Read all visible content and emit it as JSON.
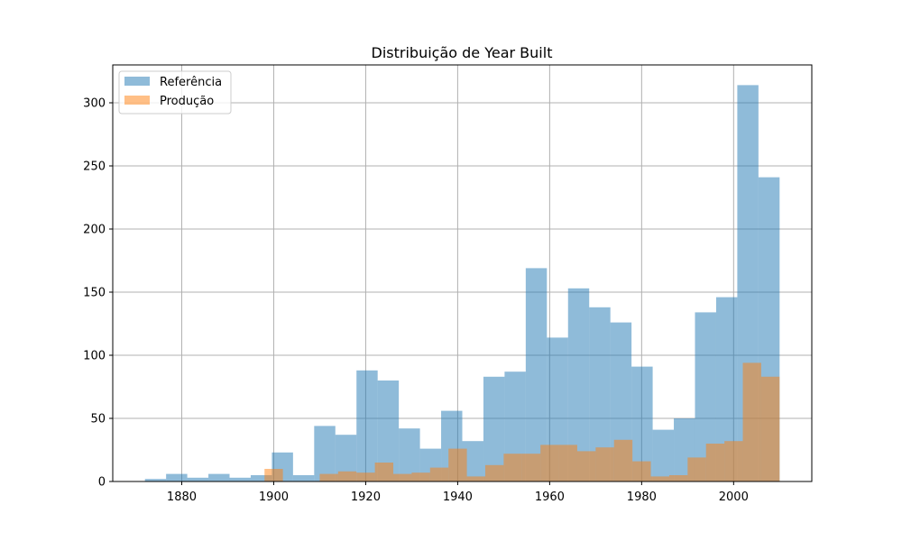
{
  "chart_data": {
    "type": "bar",
    "title": "Distribuição de Year Built",
    "xlabel": "",
    "ylabel": "",
    "xlim": [
      1865,
      2017
    ],
    "ylim": [
      0,
      330
    ],
    "grid": true,
    "legend_placement": "top-left",
    "x_ticks": [
      "1880",
      "1900",
      "1920",
      "1940",
      "1960",
      "1980",
      "2000"
    ],
    "y_ticks": [
      "0",
      "50",
      "100",
      "150",
      "200",
      "250",
      "300"
    ],
    "series": [
      {
        "name": "Referência",
        "color": "#1f77b4",
        "opacity": 0.5,
        "bins": [
          {
            "x0": 1872.0,
            "x1": 1876.6,
            "y": 2
          },
          {
            "x0": 1876.6,
            "x1": 1881.2,
            "y": 6
          },
          {
            "x0": 1881.2,
            "x1": 1885.8,
            "y": 3
          },
          {
            "x0": 1885.8,
            "x1": 1890.4,
            "y": 6
          },
          {
            "x0": 1890.4,
            "x1": 1895.0,
            "y": 3
          },
          {
            "x0": 1895.0,
            "x1": 1899.6,
            "y": 5
          },
          {
            "x0": 1899.6,
            "x1": 1904.2,
            "y": 23
          },
          {
            "x0": 1904.2,
            "x1": 1908.8,
            "y": 5
          },
          {
            "x0": 1908.8,
            "x1": 1913.4,
            "y": 44
          },
          {
            "x0": 1913.4,
            "x1": 1918.0,
            "y": 37
          },
          {
            "x0": 1918.0,
            "x1": 1922.6,
            "y": 88
          },
          {
            "x0": 1922.6,
            "x1": 1927.2,
            "y": 80
          },
          {
            "x0": 1927.2,
            "x1": 1931.8,
            "y": 42
          },
          {
            "x0": 1931.8,
            "x1": 1936.4,
            "y": 26
          },
          {
            "x0": 1936.4,
            "x1": 1941.0,
            "y": 56
          },
          {
            "x0": 1941.0,
            "x1": 1945.6,
            "y": 32
          },
          {
            "x0": 1945.6,
            "x1": 1950.2,
            "y": 83
          },
          {
            "x0": 1950.2,
            "x1": 1954.8,
            "y": 87
          },
          {
            "x0": 1954.8,
            "x1": 1959.4,
            "y": 169
          },
          {
            "x0": 1959.4,
            "x1": 1964.0,
            "y": 114
          },
          {
            "x0": 1964.0,
            "x1": 1968.6,
            "y": 153
          },
          {
            "x0": 1968.6,
            "x1": 1973.2,
            "y": 138
          },
          {
            "x0": 1973.2,
            "x1": 1977.8,
            "y": 126
          },
          {
            "x0": 1977.8,
            "x1": 1982.4,
            "y": 91
          },
          {
            "x0": 1982.4,
            "x1": 1987.0,
            "y": 41
          },
          {
            "x0": 1987.0,
            "x1": 1991.6,
            "y": 50
          },
          {
            "x0": 1991.6,
            "x1": 1996.2,
            "y": 134
          },
          {
            "x0": 1996.2,
            "x1": 2000.8,
            "y": 146
          },
          {
            "x0": 2000.8,
            "x1": 2005.4,
            "y": 314
          },
          {
            "x0": 2005.4,
            "x1": 2010.0,
            "y": 241
          }
        ]
      },
      {
        "name": "Produção",
        "color": "#ff7f0e",
        "opacity": 0.5,
        "bins": [
          {
            "x0": 1898.0,
            "x1": 1900.0,
            "y": 10
          },
          {
            "x0": 1900.0,
            "x1": 1902.0,
            "y": 10
          },
          {
            "x0": 1910.0,
            "x1": 1914.0,
            "y": 6
          },
          {
            "x0": 1914.0,
            "x1": 1918.0,
            "y": 8
          },
          {
            "x0": 1918.0,
            "x1": 1922.0,
            "y": 7
          },
          {
            "x0": 1922.0,
            "x1": 1926.0,
            "y": 15
          },
          {
            "x0": 1926.0,
            "x1": 1930.0,
            "y": 6
          },
          {
            "x0": 1930.0,
            "x1": 1934.0,
            "y": 7
          },
          {
            "x0": 1934.0,
            "x1": 1938.0,
            "y": 11
          },
          {
            "x0": 1938.0,
            "x1": 1942.0,
            "y": 26
          },
          {
            "x0": 1942.0,
            "x1": 1946.0,
            "y": 4
          },
          {
            "x0": 1946.0,
            "x1": 1950.0,
            "y": 13
          },
          {
            "x0": 1950.0,
            "x1": 1954.0,
            "y": 22
          },
          {
            "x0": 1954.0,
            "x1": 1958.0,
            "y": 22
          },
          {
            "x0": 1958.0,
            "x1": 1962.0,
            "y": 29
          },
          {
            "x0": 1962.0,
            "x1": 1966.0,
            "y": 29
          },
          {
            "x0": 1966.0,
            "x1": 1970.0,
            "y": 24
          },
          {
            "x0": 1970.0,
            "x1": 1974.0,
            "y": 27
          },
          {
            "x0": 1974.0,
            "x1": 1978.0,
            "y": 33
          },
          {
            "x0": 1978.0,
            "x1": 1982.0,
            "y": 16
          },
          {
            "x0": 1982.0,
            "x1": 1986.0,
            "y": 4
          },
          {
            "x0": 1986.0,
            "x1": 1990.0,
            "y": 5
          },
          {
            "x0": 1990.0,
            "x1": 1994.0,
            "y": 19
          },
          {
            "x0": 1994.0,
            "x1": 1998.0,
            "y": 30
          },
          {
            "x0": 1998.0,
            "x1": 2002.0,
            "y": 32
          },
          {
            "x0": 2002.0,
            "x1": 2006.0,
            "y": 94
          },
          {
            "x0": 2006.0,
            "x1": 2010.0,
            "y": 83
          }
        ]
      }
    ]
  }
}
